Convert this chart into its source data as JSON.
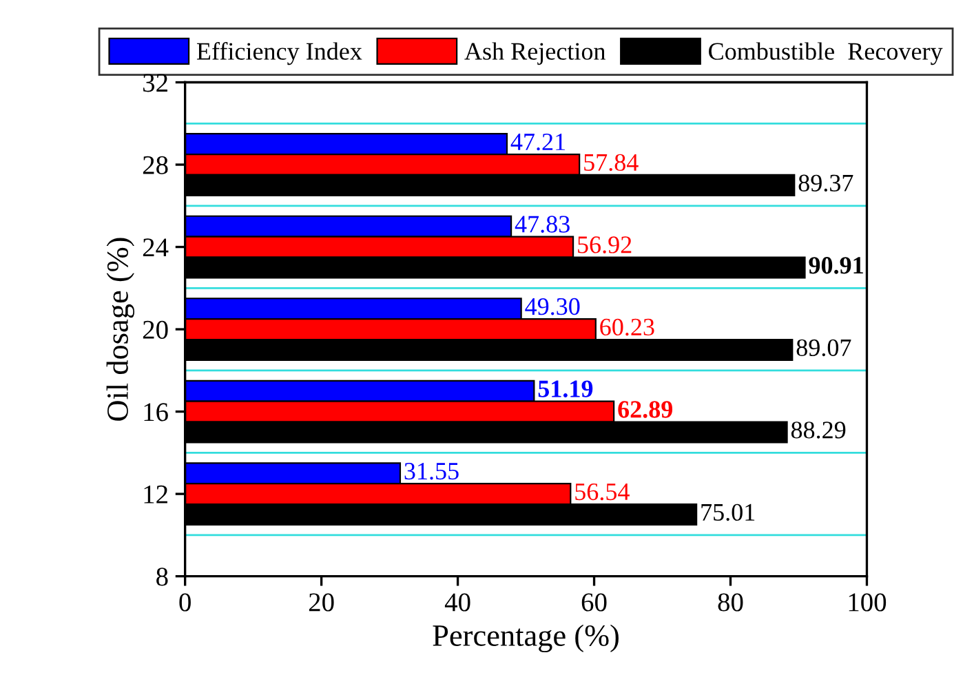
{
  "chart_data": {
    "type": "bar",
    "orientation": "horizontal",
    "xlabel": "Percentage (%)",
    "ylabel": "Oil dosage (%)",
    "x": [
      12,
      16,
      20,
      24,
      28
    ],
    "series": [
      {
        "name": "Efficiency Index",
        "color": "#0000ff",
        "values": [
          31.55,
          51.19,
          49.3,
          47.83,
          47.21
        ],
        "value_labels": [
          "31.55",
          "51.19",
          "49.30",
          "47.83",
          "47.21"
        ]
      },
      {
        "name": "Ash Rejection",
        "color": "#ff0000",
        "values": [
          56.54,
          62.89,
          60.23,
          56.92,
          57.84
        ],
        "value_labels": [
          "56.54",
          "62.89",
          "60.23",
          "56.92",
          "57.84"
        ]
      },
      {
        "name": "Combustible  Recovery",
        "color": "#000000",
        "values": [
          75.01,
          88.29,
          89.07,
          90.91,
          89.37
        ],
        "value_labels": [
          "75.01",
          "88.29",
          "89.07",
          "90.91",
          "89.37"
        ]
      }
    ],
    "xlim": [
      0,
      100
    ],
    "xticks": [
      0,
      20,
      40,
      60,
      80,
      100
    ],
    "ylim": [
      8,
      32
    ],
    "yticks": [
      8,
      12,
      16,
      20,
      24,
      28,
      32
    ],
    "ref_lines": [
      {
        "axis": "y",
        "value": 10,
        "color": "#33dddd"
      },
      {
        "axis": "y",
        "value": 14,
        "color": "#33dddd"
      },
      {
        "axis": "y",
        "value": 18,
        "color": "#33dddd"
      },
      {
        "axis": "y",
        "value": 22,
        "color": "#33dddd"
      },
      {
        "axis": "y",
        "value": 26,
        "color": "#33dddd"
      },
      {
        "axis": "y",
        "value": 30,
        "color": "#33dddd"
      }
    ],
    "legend": "top",
    "grid": false
  }
}
